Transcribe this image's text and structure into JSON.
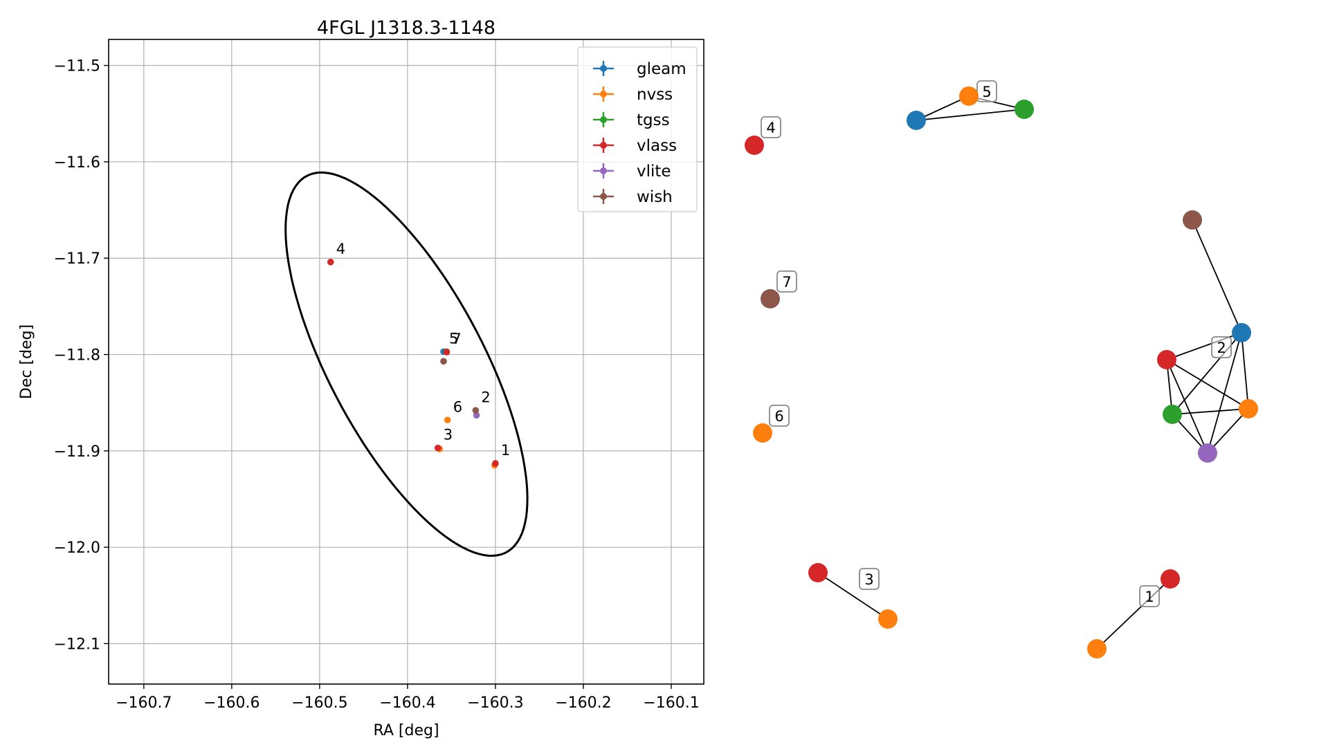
{
  "chart_data": [
    {
      "type": "scatter",
      "title": "4FGL J1318.3-1148",
      "xlabel": "RA [deg]",
      "ylabel": "Dec [deg]",
      "xlim": [
        -160.74,
        -160.063
      ],
      "ylim": [
        -12.142,
        -11.473
      ],
      "xticks": [
        -160.7,
        -160.6,
        -160.5,
        -160.4,
        -160.3,
        -160.2,
        -160.1
      ],
      "xtick_labels": [
        "−160.7",
        "−160.6",
        "−160.5",
        "−160.4",
        "−160.3",
        "−160.2",
        "−160.1"
      ],
      "yticks": [
        -11.5,
        -11.6,
        -11.7,
        -11.8,
        -11.9,
        -12.0,
        -12.1
      ],
      "ytick_labels": [
        "−11.5",
        "−11.6",
        "−11.7",
        "−11.8",
        "−11.9",
        "−12.0",
        "−12.1"
      ],
      "grid": true,
      "legend_position": "top-right",
      "colors": {
        "gleam": "#1f77b4",
        "nvss": "#ff7f0e",
        "tgss": "#2ca02c",
        "vlass": "#d62728",
        "vlite": "#9467bd",
        "wish": "#8c564b"
      },
      "series": [
        {
          "name": "gleam",
          "points": [
            [
              -160.359,
              -11.797
            ]
          ]
        },
        {
          "name": "nvss",
          "points": [
            [
              -160.301,
              -11.915
            ],
            [
              -160.3635,
              -11.898
            ],
            [
              -160.3545,
              -11.868
            ]
          ]
        },
        {
          "name": "tgss",
          "points": [
            [
              -160.3555,
              -11.797
            ]
          ]
        },
        {
          "name": "vlass",
          "points": [
            [
              -160.3,
              -11.913
            ],
            [
              -160.3655,
              -11.897
            ],
            [
              -160.4875,
              -11.704
            ],
            [
              -160.3555,
              -11.7975
            ]
          ]
        },
        {
          "name": "vlite",
          "points": [
            [
              -160.3215,
              -11.863
            ]
          ]
        },
        {
          "name": "wish",
          "points": [
            [
              -160.3225,
              -11.858
            ],
            [
              -160.359,
              -11.807
            ]
          ]
        }
      ],
      "source_labels": [
        {
          "text": "1",
          "x": -160.3,
          "y": -11.913
        },
        {
          "text": "2",
          "x": -160.3225,
          "y": -11.858
        },
        {
          "text": "3",
          "x": -160.3655,
          "y": -11.897
        },
        {
          "text": "4",
          "x": -160.4875,
          "y": -11.704
        },
        {
          "text": "5",
          "x": -160.359,
          "y": -11.797
        },
        {
          "text": "6",
          "x": -160.3545,
          "y": -11.868
        },
        {
          "text": "7",
          "x": -160.3555,
          "y": -11.7975
        }
      ],
      "error_ellipse": {
        "center": [
          -160.4012,
          -11.81
        ],
        "semi_axes": [
          0.086,
          0.226
        ],
        "angle_deg": 30.9
      }
    },
    {
      "type": "network",
      "groups": [
        {
          "label": "1",
          "nodes": [
            {
              "survey": "vlass"
            },
            {
              "survey": "nvss"
            }
          ],
          "edges": [
            [
              0,
              1
            ]
          ]
        },
        {
          "label": "2",
          "nodes": [
            {
              "survey": "wish"
            },
            {
              "survey": "gleam"
            },
            {
              "survey": "vlass"
            },
            {
              "survey": "tgss"
            },
            {
              "survey": "nvss"
            },
            {
              "survey": "vlite"
            }
          ],
          "edges": [
            [
              0,
              1
            ],
            [
              1,
              2
            ],
            [
              1,
              3
            ],
            [
              1,
              4
            ],
            [
              1,
              5
            ],
            [
              2,
              3
            ],
            [
              2,
              4
            ],
            [
              2,
              5
            ],
            [
              3,
              4
            ],
            [
              3,
              5
            ],
            [
              4,
              5
            ]
          ]
        },
        {
          "label": "3",
          "nodes": [
            {
              "survey": "vlass"
            },
            {
              "survey": "nvss"
            }
          ],
          "edges": [
            [
              0,
              1
            ]
          ]
        },
        {
          "label": "4",
          "nodes": [
            {
              "survey": "vlass"
            }
          ],
          "edges": []
        },
        {
          "label": "5",
          "nodes": [
            {
              "survey": "gleam"
            },
            {
              "survey": "nvss"
            },
            {
              "survey": "tgss"
            }
          ],
          "edges": [
            [
              0,
              1
            ],
            [
              0,
              2
            ],
            [
              1,
              2
            ]
          ]
        },
        {
          "label": "6",
          "nodes": [
            {
              "survey": "nvss"
            }
          ],
          "edges": []
        },
        {
          "label": "7",
          "nodes": [
            {
              "survey": "wish"
            }
          ],
          "edges": []
        }
      ]
    }
  ]
}
